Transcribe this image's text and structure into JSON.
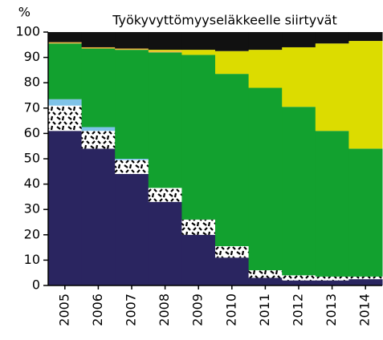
{
  "chart_data": {
    "type": "stacked_bar",
    "title": "Työkyvyttömyyseläkkeelle siirtyvät",
    "y_label": "%",
    "categories": [
      "2005",
      "2006",
      "2007",
      "2008",
      "2009",
      "2010",
      "2011",
      "2012",
      "2013",
      "2014"
    ],
    "series": [
      {
        "color": "#2a2560",
        "values": [
          61,
          54,
          44,
          33,
          20,
          11,
          3,
          2,
          2,
          2.5
        ]
      },
      {
        "color": "#ffffff",
        "hatch": true,
        "values": [
          10,
          7,
          5.5,
          5.5,
          6,
          4.5,
          3,
          2,
          1.5,
          1
        ]
      },
      {
        "color": "#7fc3e8",
        "values": [
          2.5,
          1.5,
          0.5,
          0,
          0,
          0,
          0,
          0,
          0,
          0
        ]
      },
      {
        "color": "#12a12f",
        "values": [
          22,
          31,
          43,
          53.5,
          65,
          68,
          72,
          66.5,
          57.5,
          50.5
        ]
      },
      {
        "color": "#f0b43c",
        "values": [
          0.5,
          0.5,
          0.5,
          0.5,
          0,
          0,
          0,
          0,
          0,
          0
        ]
      },
      {
        "color": "#dcdc00",
        "values": [
          0,
          0,
          0,
          0.5,
          2,
          9,
          15,
          23.5,
          34.5,
          42.5
        ]
      },
      {
        "color": "#111111",
        "values": [
          4,
          6,
          6.5,
          7,
          7,
          7.5,
          7,
          6,
          4.5,
          3.5
        ]
      }
    ],
    "ylim": [
      0,
      100
    ],
    "yticks": [
      0,
      10,
      20,
      30,
      40,
      50,
      60,
      70,
      80,
      90,
      100
    ]
  }
}
